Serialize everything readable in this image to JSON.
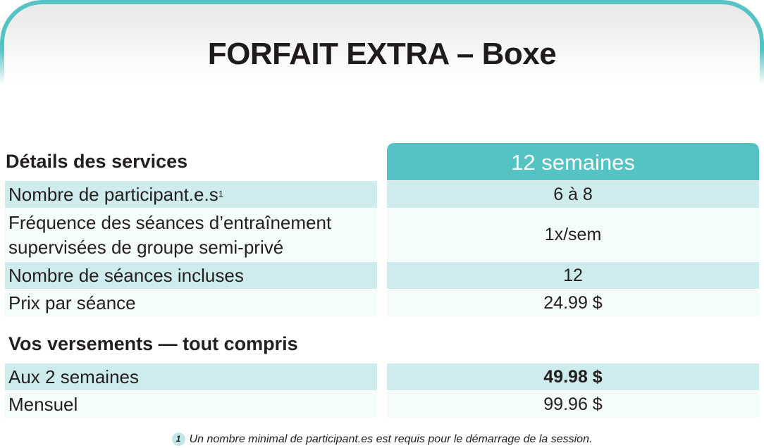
{
  "title": "FORFAIT EXTRA – Boxe",
  "services": {
    "heading": "Détails des services",
    "column_header": "12 semaines",
    "rows": [
      {
        "label": "Nombre de participant.e.s",
        "footnote_mark": "1",
        "value": "6 à 8"
      },
      {
        "label_line1": "Fréquence des séances d’entraînement",
        "label_line2": "supervisées de groupe semi-privé",
        "value": "1x/sem"
      },
      {
        "label": "Nombre de séances incluses",
        "value": "12"
      },
      {
        "label": "Prix par séance",
        "value": "24.99 $"
      }
    ]
  },
  "payments": {
    "heading": "Vos versements — tout compris",
    "rows": [
      {
        "label": "Aux 2 semaines",
        "value": "49.98 $"
      },
      {
        "label": "Mensuel",
        "value": "99.96 $"
      }
    ]
  },
  "footnote": {
    "mark": "1",
    "text": "Un nombre minimal de participant.es est requis pour le démarrage de la session."
  }
}
